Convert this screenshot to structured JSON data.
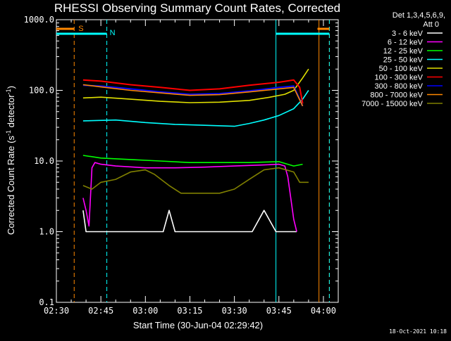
{
  "chart_data": {
    "type": "line",
    "title": "RHESSI Observing Summary Count Rates, Corrected",
    "xlabel": "Start Time (30-Jun-04 02:29:42)",
    "ylabel_main": "Corrected Count Rate (s",
    "ylabel_sup1": "-1",
    "ylabel_mid": " detector",
    "ylabel_sup2": "-1",
    "ylabel_end": ")",
    "y_scale": "log",
    "ylim": [
      0.1,
      1000
    ],
    "xlim_minutes": [
      0,
      95
    ],
    "y_ticks": [
      {
        "value": 1000,
        "label": "1000.0"
      },
      {
        "value": 100,
        "label": "100.0"
      },
      {
        "value": 10,
        "label": "10.0"
      },
      {
        "value": 1,
        "label": "1.0"
      },
      {
        "value": 0.1,
        "label": "0.1"
      }
    ],
    "x_ticks": [
      {
        "value": 0,
        "label": "02:30"
      },
      {
        "value": 15,
        "label": "02:45"
      },
      {
        "value": 30,
        "label": "03:00"
      },
      {
        "value": 45,
        "label": "03:15"
      },
      {
        "value": 60,
        "label": "03:30"
      },
      {
        "value": 75,
        "label": "03:45"
      },
      {
        "value": 90,
        "label": "04:00"
      }
    ],
    "legend_header": [
      "Det 1,3,4,5,6,9,",
      "Att 0"
    ],
    "series": [
      {
        "name": "3 - 6 keV",
        "color": "#ffffff",
        "x": [
          9,
          10,
          11,
          13,
          20,
          30,
          36,
          38,
          40,
          45,
          52,
          60,
          66,
          70,
          74,
          78,
          79,
          81
        ],
        "y": [
          2.0,
          1.0,
          1.0,
          1.0,
          1.0,
          1.0,
          1.0,
          2.0,
          1.0,
          1.0,
          1.0,
          1.0,
          1.0,
          2.0,
          1.0,
          1.0,
          1.0,
          1.0
        ]
      },
      {
        "name": "6 - 12 keV",
        "color": "#ff00ff",
        "x": [
          9,
          10,
          11,
          12,
          13,
          15,
          20,
          30,
          40,
          50,
          60,
          70,
          75,
          77,
          78,
          79,
          80,
          81
        ],
        "y": [
          3.0,
          2.0,
          1.2,
          8.0,
          9.5,
          9.0,
          8.5,
          8.0,
          8.0,
          8.2,
          8.5,
          8.8,
          9.0,
          8.5,
          6.0,
          3.0,
          1.5,
          1.0
        ]
      },
      {
        "name": "12 - 25 keV",
        "color": "#00ff00",
        "x": [
          9,
          15,
          25,
          35,
          45,
          55,
          65,
          75,
          80,
          83
        ],
        "y": [
          12,
          11,
          10.5,
          10,
          9.5,
          9.5,
          9.5,
          9.8,
          8.5,
          9.0
        ]
      },
      {
        "name": "25 - 50 keV",
        "color": "#00ffff",
        "x": [
          9,
          20,
          30,
          40,
          50,
          60,
          65,
          70,
          75,
          80,
          83,
          85
        ],
        "y": [
          37,
          38,
          35,
          33,
          32,
          31,
          34,
          38,
          44,
          55,
          75,
          100
        ]
      },
      {
        "name": "50 - 100 keV",
        "color": "#e0e000",
        "x": [
          9,
          15,
          25,
          35,
          45,
          55,
          65,
          72,
          77,
          80,
          83,
          85
        ],
        "y": [
          78,
          80,
          75,
          70,
          67,
          68,
          72,
          80,
          88,
          100,
          150,
          200
        ]
      },
      {
        "name": "100 - 300 keV",
        "color": "#ff0000",
        "x": [
          9,
          15,
          25,
          35,
          45,
          55,
          65,
          75,
          80,
          82,
          83
        ],
        "y": [
          140,
          135,
          120,
          110,
          100,
          105,
          118,
          130,
          140,
          110,
          65
        ]
      },
      {
        "name": "300 - 800 keV",
        "color": "#0000ff",
        "x": [
          9,
          15,
          25,
          35,
          45,
          55,
          65,
          75,
          80,
          83
        ],
        "y": [
          118,
          115,
          105,
          95,
          88,
          90,
          98,
          110,
          115,
          60
        ]
      },
      {
        "name": "800 - 7000 keV",
        "color": "#ff8800",
        "x": [
          9,
          15,
          25,
          35,
          45,
          55,
          65,
          75,
          80,
          83
        ],
        "y": [
          120,
          112,
          100,
          92,
          85,
          87,
          95,
          105,
          110,
          60
        ]
      },
      {
        "name": "7000 - 15000 keV",
        "color": "#808000",
        "x": [
          9,
          12,
          15,
          20,
          25,
          30,
          33,
          38,
          42,
          48,
          55,
          60,
          65,
          70,
          75,
          80,
          82,
          84,
          85
        ],
        "y": [
          4.5,
          4.0,
          5.0,
          5.5,
          7.0,
          7.5,
          6.5,
          4.5,
          3.5,
          3.5,
          3.5,
          4.0,
          5.5,
          7.5,
          8.0,
          7.0,
          5.0,
          5.0,
          5.0
        ]
      }
    ],
    "flags": [
      {
        "label": "S",
        "color": "#ff8800",
        "segments": [
          [
            0,
            6
          ],
          [
            88,
            92
          ]
        ]
      },
      {
        "label": "N",
        "color": "#00ffff",
        "segments": [
          [
            0,
            17
          ],
          [
            74,
            92
          ]
        ]
      }
    ],
    "vlines_dashed_orange": [
      6,
      92
    ],
    "vlines_dashed_cyan": [
      17,
      92
    ],
    "vlines_solid_cyan": [
      74
    ],
    "vlines_solid_orange": [
      88.5
    ],
    "footer": "18-Oct-2021 10:18"
  }
}
